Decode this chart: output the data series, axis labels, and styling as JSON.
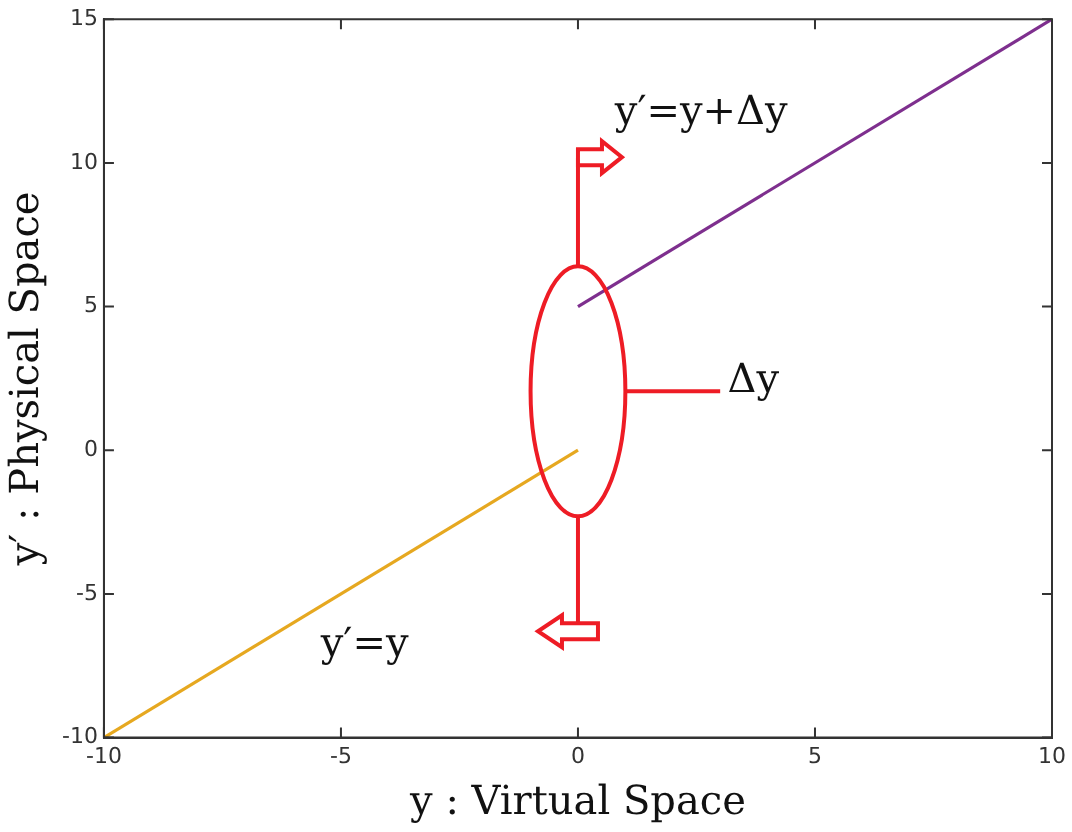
{
  "chart_data": {
    "type": "line",
    "xlabel": "y : Virtual Space",
    "ylabel": "y′ : Physical Space",
    "xlim": [
      -10,
      10
    ],
    "ylim": [
      -10,
      15
    ],
    "xticks": [
      -10,
      -5,
      0,
      5,
      10
    ],
    "yticks": [
      -10,
      -5,
      0,
      5,
      10,
      15
    ],
    "marker": "none",
    "series": [
      {
        "color": "#e6a820",
        "x": [
          -10,
          0
        ],
        "values": [
          -10,
          0
        ]
      },
      {
        "color": "#7e2f8e",
        "x": [
          0,
          10
        ],
        "values": [
          5,
          15
        ]
      }
    ],
    "annotations": [
      "y′=y+Δy",
      "Δy",
      "y′=y"
    ]
  }
}
